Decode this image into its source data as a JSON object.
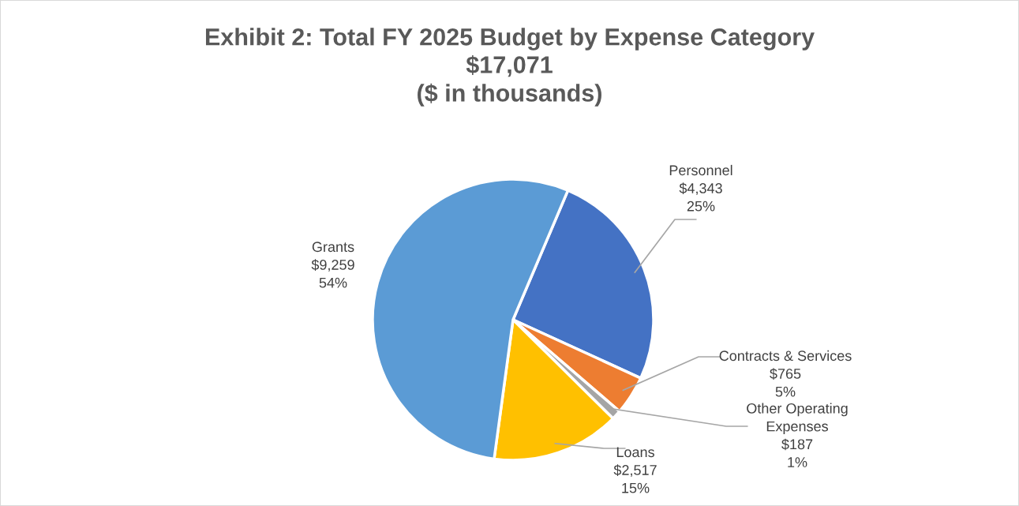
{
  "chart_data": {
    "type": "pie",
    "title": "Exhibit 2: Total FY 2025 Budget by Expense Category",
    "subtitle": "$17,071\n($ in thousands)",
    "categories": [
      "Personnel",
      "Contracts & Services",
      "Other Operating\nExpenses",
      "Loans",
      "Grants"
    ],
    "values": [
      4343,
      765,
      187,
      2517,
      9259
    ],
    "colors": [
      "#4472c4",
      "#ed7d31",
      "#a5a5a5",
      "#ffc000",
      "#5b9bd5"
    ],
    "value_labels": [
      "$4,343\n25%",
      "$765\n5%",
      "$187\n1%",
      "$2,517\n15%",
      "$9,259\n54%"
    ],
    "legend": false
  }
}
